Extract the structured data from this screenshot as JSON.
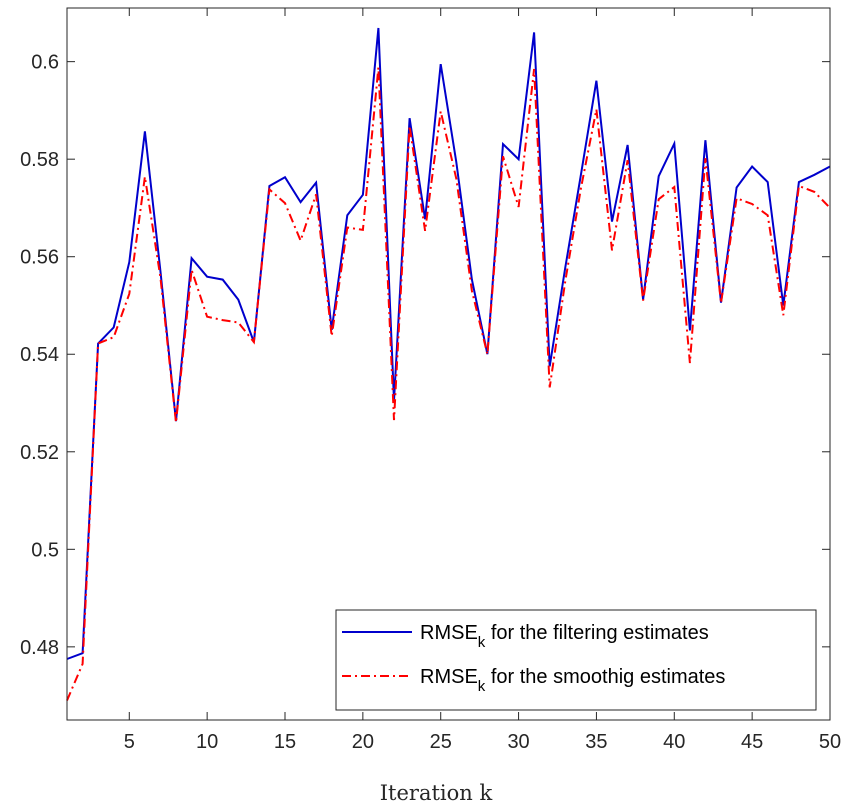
{
  "chart_data": {
    "type": "line",
    "title": "",
    "xlabel": "Iteration k",
    "ylabel": "",
    "xlim": [
      1,
      50
    ],
    "ylim": [
      0.465,
      0.611
    ],
    "xticks": [
      5,
      10,
      15,
      20,
      25,
      30,
      35,
      40,
      45,
      50
    ],
    "yticks": [
      0.48,
      0.5,
      0.52,
      0.54,
      0.56,
      0.58,
      0.6
    ],
    "grid": false,
    "legend_position": "bottom-right",
    "x": [
      1,
      2,
      3,
      4,
      5,
      6,
      7,
      8,
      9,
      10,
      11,
      12,
      13,
      14,
      15,
      16,
      17,
      18,
      19,
      20,
      21,
      22,
      23,
      24,
      25,
      26,
      27,
      28,
      29,
      30,
      31,
      32,
      33,
      34,
      35,
      36,
      37,
      38,
      39,
      40,
      41,
      42,
      43,
      44,
      45,
      46,
      47,
      48,
      49,
      50
    ],
    "series": [
      {
        "name": "RMSE",
        "name_sub": "k",
        "name_rest": " for the filtering estimates",
        "color": "#0000cc",
        "style": "solid",
        "values": [
          0.4775,
          0.4787,
          0.5422,
          0.5455,
          0.5589,
          0.5857,
          0.5571,
          0.5263,
          0.5597,
          0.5559,
          0.5553,
          0.5512,
          0.5425,
          0.5745,
          0.5763,
          0.5712,
          0.5752,
          0.545,
          0.5685,
          0.5727,
          0.6069,
          0.5305,
          0.5884,
          0.5677,
          0.5995,
          0.5794,
          0.5553,
          0.54,
          0.5831,
          0.58,
          0.606,
          0.5375,
          0.5578,
          0.5768,
          0.5961,
          0.5672,
          0.5829,
          0.5512,
          0.5765,
          0.5832,
          0.5449,
          0.5839,
          0.5506,
          0.5742,
          0.5785,
          0.5753,
          0.55,
          0.5753,
          0.5768,
          0.5785
        ]
      },
      {
        "name": "RMSE",
        "name_sub": "k",
        "name_rest": " for the smoothig estimates",
        "color": "#ff0000",
        "style": "dash-dot",
        "values": [
          0.469,
          0.4765,
          0.5422,
          0.5435,
          0.5524,
          0.5764,
          0.5558,
          0.526,
          0.5573,
          0.5477,
          0.547,
          0.5465,
          0.5425,
          0.5738,
          0.571,
          0.5633,
          0.5728,
          0.5437,
          0.566,
          0.5655,
          0.5988,
          0.5265,
          0.5868,
          0.5653,
          0.5898,
          0.576,
          0.553,
          0.54,
          0.5806,
          0.5702,
          0.5985,
          0.5332,
          0.555,
          0.574,
          0.5902,
          0.5613,
          0.5798,
          0.551,
          0.5718,
          0.5743,
          0.5382,
          0.5802,
          0.5505,
          0.572,
          0.5708,
          0.5685,
          0.548,
          0.5745,
          0.5733,
          0.57
        ]
      }
    ]
  }
}
